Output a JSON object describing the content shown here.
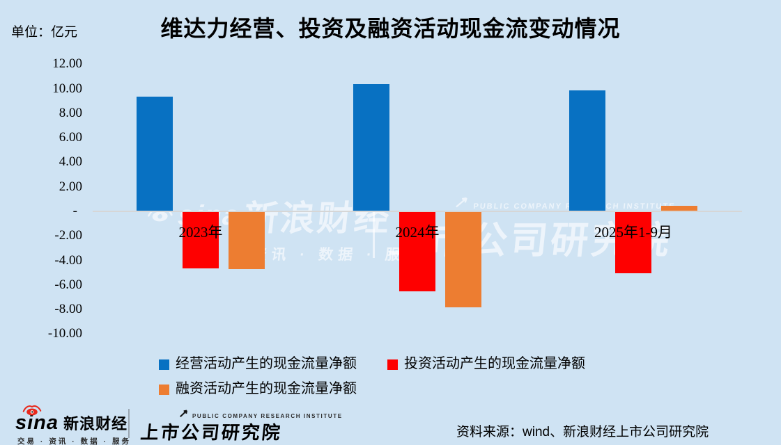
{
  "chart_data": {
    "type": "bar",
    "title": "维达力经营、投资及融资活动现金流变动情况",
    "unit": "单位：亿元",
    "categories": [
      "2023年",
      "2024年",
      "2025年1-9月"
    ],
    "series": [
      {
        "key": "operating",
        "name": "经营活动产生的现金流量净额",
        "color": "#0871C2",
        "values": [
          9.3,
          10.3,
          9.8
        ]
      },
      {
        "key": "investing",
        "name": "投资活动产生的现金流量净额",
        "color": "#FE0000",
        "values": [
          -4.6,
          -6.5,
          -5.0
        ]
      },
      {
        "key": "financing",
        "name": "融资活动产生的现金流量净额",
        "color": "#ED7D31",
        "values": [
          -4.7,
          -7.8,
          0.4
        ]
      }
    ],
    "y_axis": {
      "range": [
        -10,
        12
      ],
      "ticks": [
        {
          "value": 12,
          "label": "12.00"
        },
        {
          "value": 10,
          "label": "10.00"
        },
        {
          "value": 8,
          "label": "8.00"
        },
        {
          "value": 6,
          "label": "6.00"
        },
        {
          "value": 4,
          "label": "4.00"
        },
        {
          "value": 2,
          "label": "2.00"
        },
        {
          "value": 0,
          "label": "-"
        },
        {
          "value": -2,
          "label": "-2.00"
        },
        {
          "value": -4,
          "label": "-4.00"
        },
        {
          "value": -6,
          "label": "-6.00"
        },
        {
          "value": -8,
          "label": "-8.00"
        },
        {
          "value": -10,
          "label": "-10.00"
        }
      ]
    },
    "grid": false,
    "legend_position": "bottom"
  },
  "colors": {
    "background": "#CFE3F3",
    "axis_line": "#D6D6D6",
    "sina_red": "#E8291C"
  },
  "watermark": {
    "brand": "sina",
    "brand_cn": "新浪财经",
    "tagline": "交易 · 资讯 · 数据 · 服务",
    "institute_en": "PUBLIC COMPANY RESEARCH INSTITUTE",
    "institute": "上市公司研究院"
  },
  "footer": {
    "brand": "sina",
    "brand_cn": "新浪财经",
    "tagline": "交易 · 资讯 · 数据 · 服务",
    "institute_en": "PUBLIC COMPANY RESEARCH INSTITUTE",
    "institute": "上市公司研究院",
    "source": "资料来源：wind、新浪财经上市公司研究院"
  }
}
